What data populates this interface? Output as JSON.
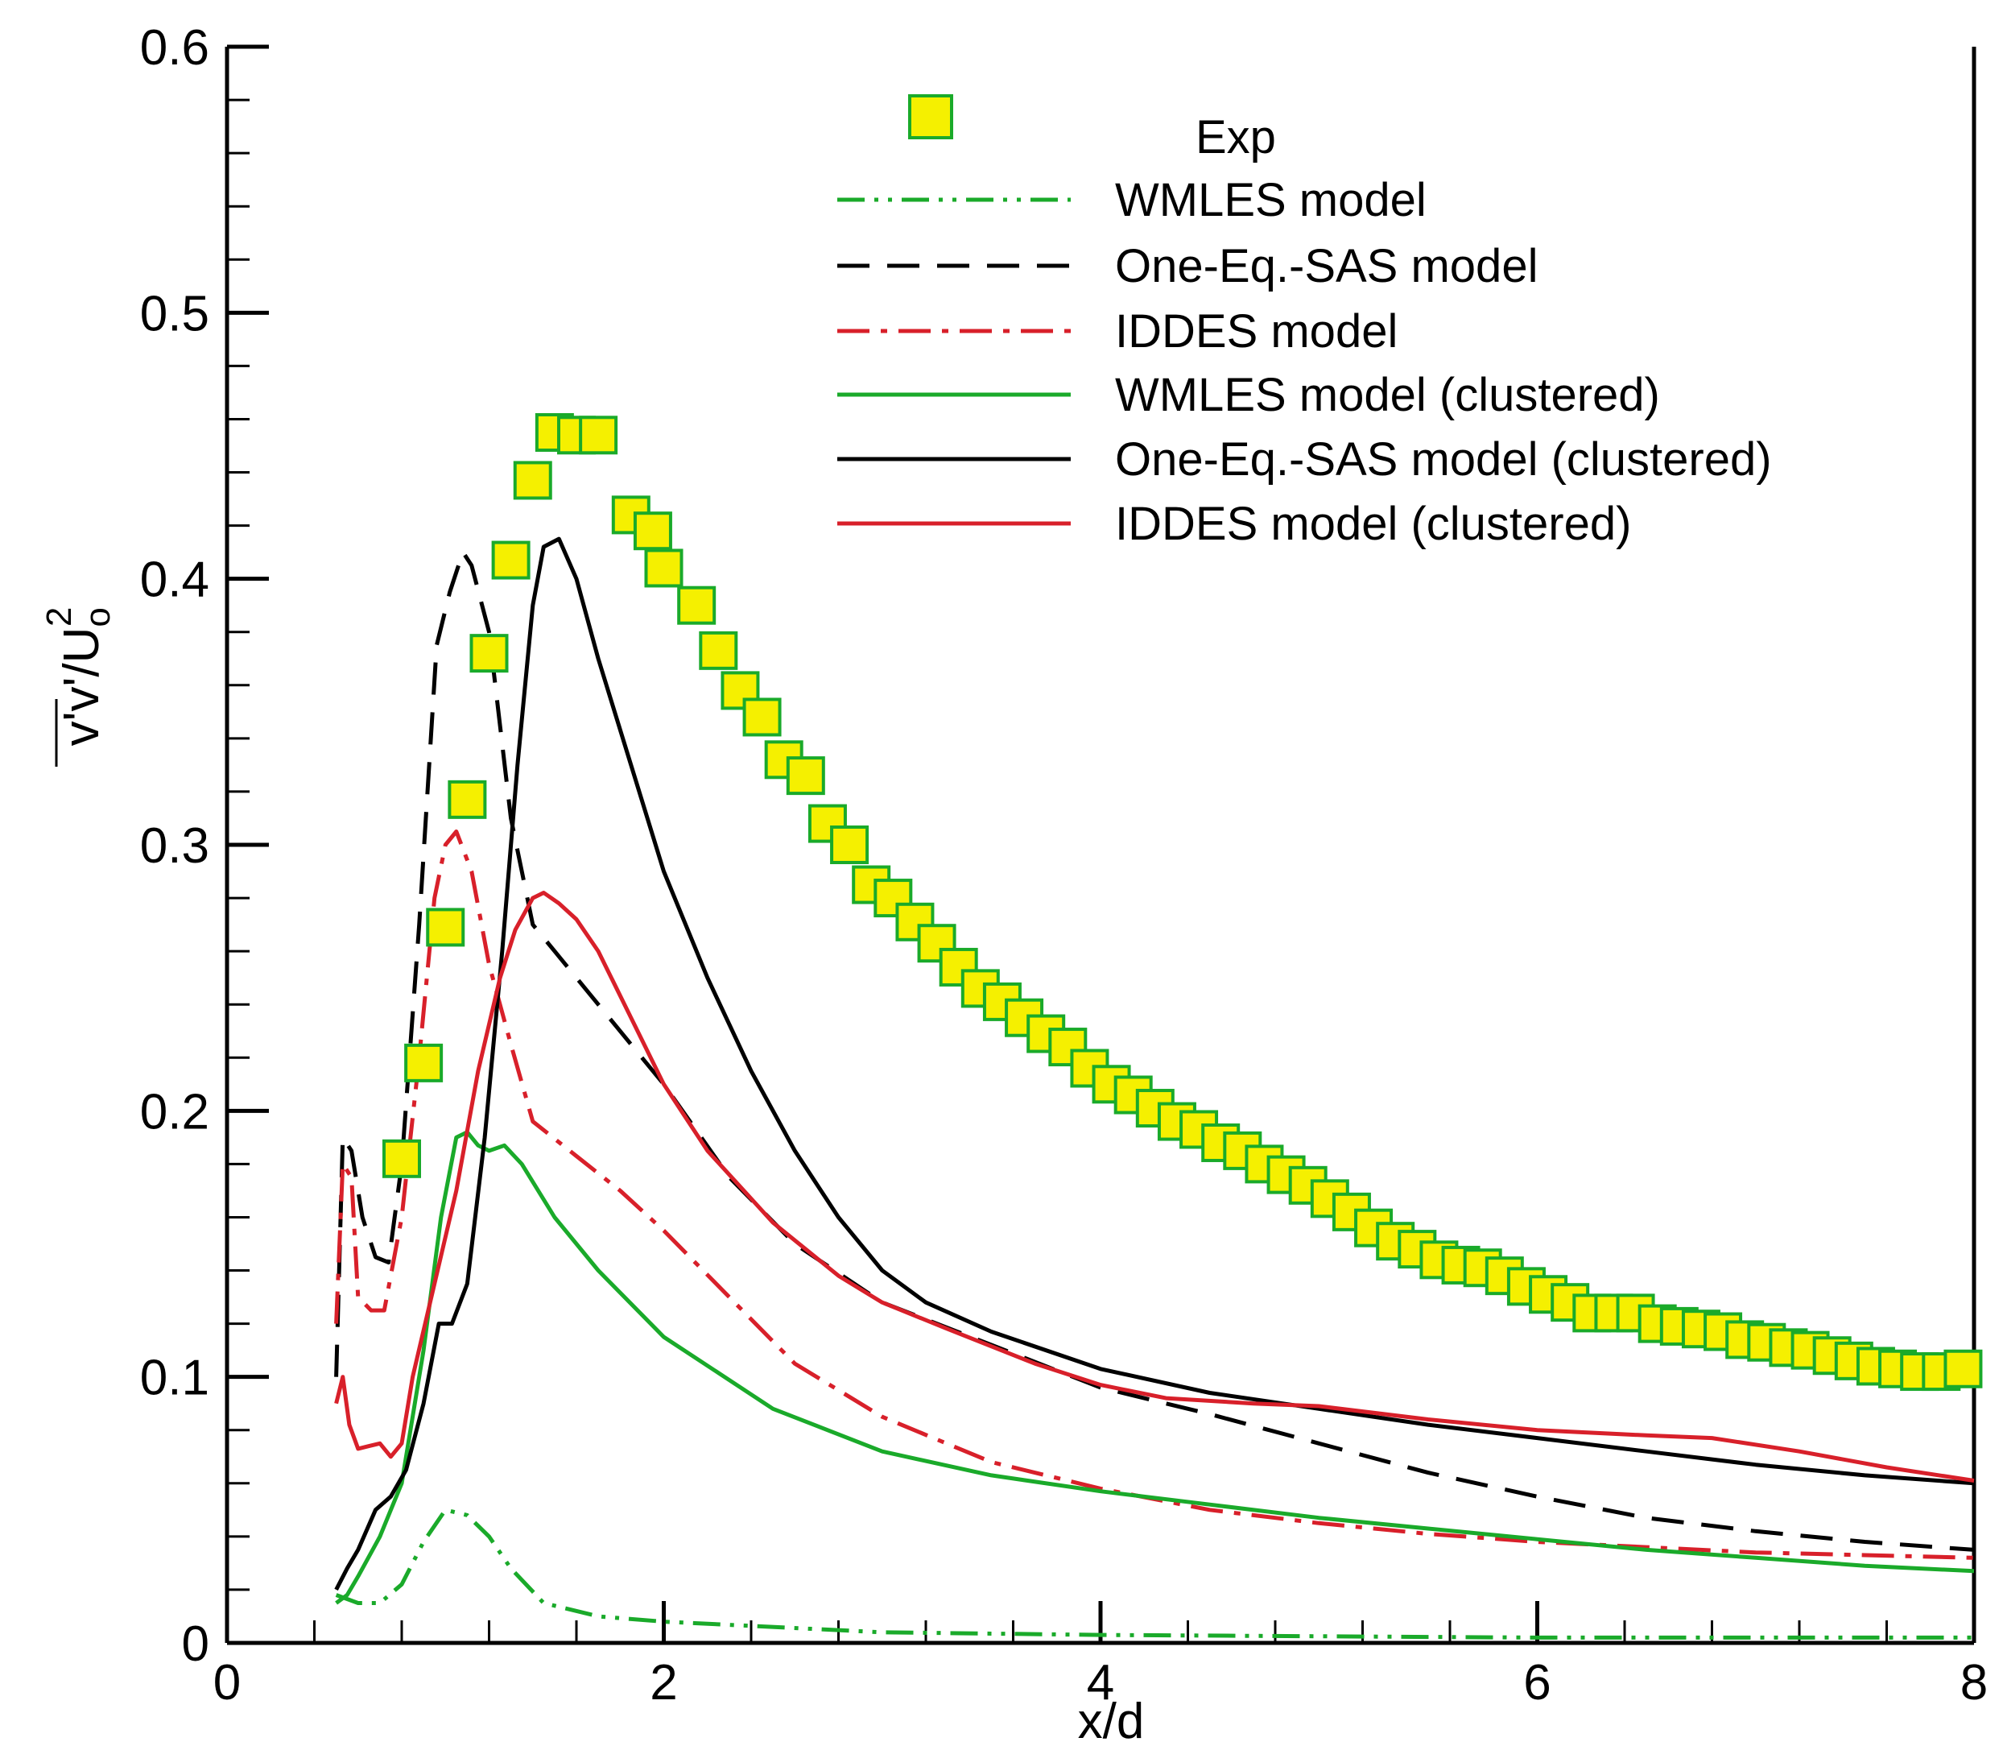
{
  "chart_data": {
    "type": "line",
    "title": "",
    "xlabel": "x/d",
    "ylabel": "v'v'/U0^2",
    "ylabel_parts": {
      "base": "v'v'/U",
      "subscript": "o",
      "superscript": "2"
    },
    "xlim": [
      0,
      8
    ],
    "ylim": [
      0,
      0.6
    ],
    "xticks": [
      0,
      2,
      4,
      6,
      8
    ],
    "xtick_labels": [
      "0",
      "2",
      "4",
      "6",
      "8"
    ],
    "yticks": [
      0,
      0.1,
      0.2,
      0.3,
      0.4,
      0.5,
      0.6
    ],
    "ytick_labels": [
      "0",
      "0.1",
      "0.2",
      "0.3",
      "0.4",
      "0.5",
      "0.6"
    ],
    "grid": false,
    "legend_position": "top-right",
    "legend": [
      "Exp",
      "WMLES model",
      "One-Eq.-SAS model",
      "IDDES model",
      "WMLES model (clustered)",
      "One-Eq.-SAS model (clustered)",
      "IDDES model (clustered)"
    ],
    "series": [
      {
        "name": "Exp",
        "style": "markers",
        "color": "#1aaa2a",
        "fill": "#f5f000",
        "points": [
          [
            0.8,
            0.182
          ],
          [
            0.9,
            0.218
          ],
          [
            1.0,
            0.269
          ],
          [
            1.1,
            0.317
          ],
          [
            1.2,
            0.372
          ],
          [
            1.3,
            0.407
          ],
          [
            1.4,
            0.437
          ],
          [
            1.5,
            0.455
          ],
          [
            1.6,
            0.454
          ],
          [
            1.7,
            0.454
          ],
          [
            1.85,
            0.424
          ],
          [
            1.95,
            0.418
          ],
          [
            2.0,
            0.404
          ],
          [
            2.15,
            0.39
          ],
          [
            2.25,
            0.373
          ],
          [
            2.35,
            0.358
          ],
          [
            2.45,
            0.348
          ],
          [
            2.55,
            0.332
          ],
          [
            2.65,
            0.326
          ],
          [
            2.75,
            0.308
          ],
          [
            2.85,
            0.3
          ],
          [
            2.95,
            0.285
          ],
          [
            3.05,
            0.28
          ],
          [
            3.15,
            0.271
          ],
          [
            3.25,
            0.263
          ],
          [
            3.35,
            0.254
          ],
          [
            3.45,
            0.246
          ],
          [
            3.55,
            0.241
          ],
          [
            3.65,
            0.235
          ],
          [
            3.75,
            0.229
          ],
          [
            3.85,
            0.224
          ],
          [
            3.95,
            0.216
          ],
          [
            4.05,
            0.21
          ],
          [
            4.15,
            0.206
          ],
          [
            4.25,
            0.201
          ],
          [
            4.35,
            0.196
          ],
          [
            4.45,
            0.193
          ],
          [
            4.55,
            0.188
          ],
          [
            4.65,
            0.185
          ],
          [
            4.75,
            0.18
          ],
          [
            4.85,
            0.176
          ],
          [
            4.95,
            0.172
          ],
          [
            5.05,
            0.167
          ],
          [
            5.15,
            0.162
          ],
          [
            5.25,
            0.156
          ],
          [
            5.35,
            0.151
          ],
          [
            5.45,
            0.148
          ],
          [
            5.55,
            0.144
          ],
          [
            5.65,
            0.142
          ],
          [
            5.75,
            0.141
          ],
          [
            5.85,
            0.138
          ],
          [
            5.95,
            0.134
          ],
          [
            6.05,
            0.131
          ],
          [
            6.15,
            0.128
          ],
          [
            6.25,
            0.124
          ],
          [
            6.35,
            0.124
          ],
          [
            6.45,
            0.124
          ],
          [
            6.55,
            0.12
          ],
          [
            6.65,
            0.119
          ],
          [
            6.75,
            0.118
          ],
          [
            6.85,
            0.117
          ],
          [
            6.95,
            0.114
          ],
          [
            7.05,
            0.113
          ],
          [
            7.15,
            0.111
          ],
          [
            7.25,
            0.11
          ],
          [
            7.35,
            0.108
          ],
          [
            7.45,
            0.106
          ],
          [
            7.55,
            0.104
          ],
          [
            7.65,
            0.103
          ],
          [
            7.75,
            0.102
          ],
          [
            7.85,
            0.102
          ],
          [
            7.95,
            0.103
          ]
        ]
      },
      {
        "name": "WMLES model",
        "style": "dash-dot-dot",
        "color": "#1aaa2a",
        "points": [
          [
            0.5,
            0.018
          ],
          [
            0.6,
            0.015
          ],
          [
            0.7,
            0.015
          ],
          [
            0.8,
            0.022
          ],
          [
            0.9,
            0.038
          ],
          [
            1.0,
            0.05
          ],
          [
            1.1,
            0.048
          ],
          [
            1.2,
            0.04
          ],
          [
            1.3,
            0.028
          ],
          [
            1.45,
            0.015
          ],
          [
            1.7,
            0.01
          ],
          [
            2.0,
            0.008
          ],
          [
            3.0,
            0.004
          ],
          [
            4.0,
            0.003
          ],
          [
            6.0,
            0.002
          ],
          [
            8.0,
            0.002
          ]
        ]
      },
      {
        "name": "One-Eq.-SAS model",
        "style": "dashed",
        "color": "#000000",
        "points": [
          [
            0.5,
            0.1
          ],
          [
            0.53,
            0.19
          ],
          [
            0.57,
            0.185
          ],
          [
            0.62,
            0.16
          ],
          [
            0.68,
            0.145
          ],
          [
            0.74,
            0.143
          ],
          [
            0.8,
            0.18
          ],
          [
            0.88,
            0.27
          ],
          [
            0.96,
            0.375
          ],
          [
            1.02,
            0.395
          ],
          [
            1.08,
            0.41
          ],
          [
            1.12,
            0.405
          ],
          [
            1.2,
            0.38
          ],
          [
            1.3,
            0.31
          ],
          [
            1.4,
            0.27
          ],
          [
            1.5,
            0.26
          ],
          [
            1.7,
            0.24
          ],
          [
            2.0,
            0.21
          ],
          [
            2.3,
            0.175
          ],
          [
            2.6,
            0.15
          ],
          [
            3.0,
            0.128
          ],
          [
            3.5,
            0.112
          ],
          [
            4.0,
            0.096
          ],
          [
            4.5,
            0.086
          ],
          [
            5.0,
            0.075
          ],
          [
            5.5,
            0.064
          ],
          [
            6.0,
            0.055
          ],
          [
            6.5,
            0.047
          ],
          [
            7.0,
            0.042
          ],
          [
            7.5,
            0.038
          ],
          [
            8.0,
            0.035
          ]
        ]
      },
      {
        "name": "IDDES model",
        "style": "dash-dot",
        "color": "#d8202a",
        "points": [
          [
            0.5,
            0.12
          ],
          [
            0.53,
            0.18
          ],
          [
            0.57,
            0.175
          ],
          [
            0.6,
            0.13
          ],
          [
            0.66,
            0.125
          ],
          [
            0.72,
            0.125
          ],
          [
            0.8,
            0.16
          ],
          [
            0.88,
            0.22
          ],
          [
            0.95,
            0.28
          ],
          [
            1.0,
            0.3
          ],
          [
            1.05,
            0.305
          ],
          [
            1.12,
            0.29
          ],
          [
            1.2,
            0.255
          ],
          [
            1.3,
            0.225
          ],
          [
            1.4,
            0.196
          ],
          [
            1.6,
            0.183
          ],
          [
            1.8,
            0.17
          ],
          [
            2.0,
            0.155
          ],
          [
            2.3,
            0.13
          ],
          [
            2.6,
            0.105
          ],
          [
            3.0,
            0.085
          ],
          [
            3.5,
            0.068
          ],
          [
            4.0,
            0.058
          ],
          [
            4.5,
            0.05
          ],
          [
            5.0,
            0.045
          ],
          [
            5.5,
            0.041
          ],
          [
            6.0,
            0.038
          ],
          [
            6.5,
            0.036
          ],
          [
            7.0,
            0.034
          ],
          [
            7.5,
            0.033
          ],
          [
            8.0,
            0.032
          ]
        ]
      },
      {
        "name": "WMLES model (clustered)",
        "style": "solid",
        "color": "#1aaa2a",
        "points": [
          [
            0.5,
            0.015
          ],
          [
            0.55,
            0.018
          ],
          [
            0.6,
            0.025
          ],
          [
            0.7,
            0.04
          ],
          [
            0.8,
            0.06
          ],
          [
            0.9,
            0.11
          ],
          [
            0.98,
            0.16
          ],
          [
            1.05,
            0.19
          ],
          [
            1.1,
            0.192
          ],
          [
            1.15,
            0.187
          ],
          [
            1.2,
            0.185
          ],
          [
            1.27,
            0.187
          ],
          [
            1.35,
            0.18
          ],
          [
            1.5,
            0.16
          ],
          [
            1.7,
            0.14
          ],
          [
            2.0,
            0.115
          ],
          [
            2.5,
            0.088
          ],
          [
            3.0,
            0.072
          ],
          [
            3.5,
            0.063
          ],
          [
            4.0,
            0.057
          ],
          [
            4.5,
            0.052
          ],
          [
            5.0,
            0.047
          ],
          [
            5.5,
            0.043
          ],
          [
            6.0,
            0.039
          ],
          [
            6.5,
            0.035
          ],
          [
            7.0,
            0.032
          ],
          [
            7.5,
            0.029
          ],
          [
            8.0,
            0.027
          ]
        ]
      },
      {
        "name": "One-Eq.-SAS model (clustered)",
        "style": "solid",
        "color": "#000000",
        "points": [
          [
            0.5,
            0.02
          ],
          [
            0.55,
            0.028
          ],
          [
            0.6,
            0.035
          ],
          [
            0.68,
            0.05
          ],
          [
            0.75,
            0.055
          ],
          [
            0.82,
            0.065
          ],
          [
            0.9,
            0.09
          ],
          [
            0.97,
            0.12
          ],
          [
            1.03,
            0.12
          ],
          [
            1.1,
            0.135
          ],
          [
            1.18,
            0.19
          ],
          [
            1.26,
            0.26
          ],
          [
            1.33,
            0.33
          ],
          [
            1.4,
            0.39
          ],
          [
            1.45,
            0.412
          ],
          [
            1.52,
            0.415
          ],
          [
            1.6,
            0.4
          ],
          [
            1.7,
            0.37
          ],
          [
            1.85,
            0.33
          ],
          [
            2.0,
            0.29
          ],
          [
            2.2,
            0.25
          ],
          [
            2.4,
            0.215
          ],
          [
            2.6,
            0.185
          ],
          [
            2.8,
            0.16
          ],
          [
            3.0,
            0.14
          ],
          [
            3.2,
            0.128
          ],
          [
            3.5,
            0.117
          ],
          [
            4.0,
            0.103
          ],
          [
            4.5,
            0.094
          ],
          [
            5.0,
            0.088
          ],
          [
            5.5,
            0.082
          ],
          [
            6.0,
            0.077
          ],
          [
            6.5,
            0.072
          ],
          [
            7.0,
            0.067
          ],
          [
            7.5,
            0.063
          ],
          [
            8.0,
            0.06
          ]
        ]
      },
      {
        "name": "IDDES model (clustered)",
        "style": "solid",
        "color": "#d8202a",
        "points": [
          [
            0.5,
            0.09
          ],
          [
            0.53,
            0.1
          ],
          [
            0.56,
            0.082
          ],
          [
            0.6,
            0.073
          ],
          [
            0.65,
            0.074
          ],
          [
            0.7,
            0.075
          ],
          [
            0.75,
            0.07
          ],
          [
            0.8,
            0.075
          ],
          [
            0.85,
            0.1
          ],
          [
            0.95,
            0.135
          ],
          [
            1.05,
            0.17
          ],
          [
            1.15,
            0.215
          ],
          [
            1.25,
            0.25
          ],
          [
            1.32,
            0.268
          ],
          [
            1.4,
            0.28
          ],
          [
            1.45,
            0.282
          ],
          [
            1.52,
            0.278
          ],
          [
            1.6,
            0.272
          ],
          [
            1.7,
            0.26
          ],
          [
            1.85,
            0.235
          ],
          [
            2.0,
            0.21
          ],
          [
            2.2,
            0.185
          ],
          [
            2.5,
            0.158
          ],
          [
            2.8,
            0.138
          ],
          [
            3.0,
            0.128
          ],
          [
            3.3,
            0.118
          ],
          [
            3.7,
            0.105
          ],
          [
            4.0,
            0.097
          ],
          [
            4.3,
            0.092
          ],
          [
            4.7,
            0.09
          ],
          [
            5.0,
            0.089
          ],
          [
            5.5,
            0.084
          ],
          [
            6.0,
            0.08
          ],
          [
            6.5,
            0.078
          ],
          [
            6.8,
            0.077
          ],
          [
            7.2,
            0.072
          ],
          [
            7.6,
            0.066
          ],
          [
            8.0,
            0.061
          ]
        ]
      }
    ]
  }
}
